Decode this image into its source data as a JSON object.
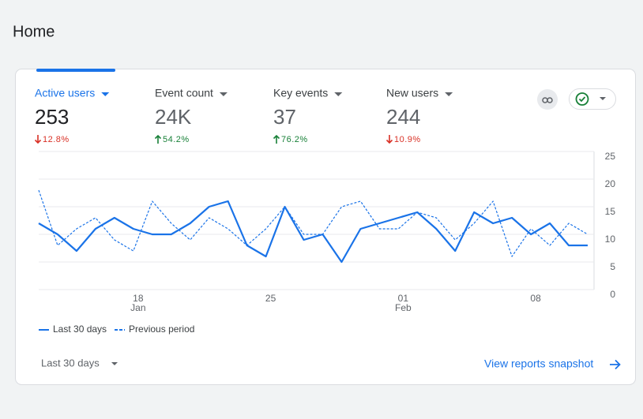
{
  "header": {
    "title": "Home"
  },
  "metrics": [
    {
      "label": "Active users",
      "value": "253",
      "change": "12.8%",
      "trend": "down",
      "selected": true
    },
    {
      "label": "Event count",
      "value": "24K",
      "change": "54.2%",
      "trend": "up",
      "selected": false
    },
    {
      "label": "Key events",
      "value": "37",
      "change": "76.2%",
      "trend": "up",
      "selected": false
    },
    {
      "label": "New users",
      "value": "244",
      "change": "10.9%",
      "trend": "down",
      "selected": false
    }
  ],
  "chart_data": {
    "type": "line",
    "categories": [
      null,
      null,
      null,
      null,
      null,
      "18",
      null,
      null,
      null,
      null,
      null,
      null,
      "25",
      null,
      null,
      null,
      null,
      null,
      null,
      "01",
      null,
      null,
      null,
      null,
      null,
      null,
      "08",
      null,
      null,
      null
    ],
    "month_labels": [
      null,
      null,
      null,
      null,
      null,
      "Jan",
      null,
      null,
      null,
      null,
      null,
      null,
      null,
      null,
      null,
      null,
      null,
      null,
      null,
      "Feb",
      null,
      null,
      null,
      null,
      null,
      null,
      null,
      null,
      null,
      null
    ],
    "series": [
      {
        "name": "Last 30 days",
        "color": "#1a73e8",
        "dashed": false,
        "values": [
          12,
          10,
          7,
          11,
          13,
          11,
          10,
          10,
          12,
          15,
          16,
          8,
          6,
          15,
          9,
          10,
          5,
          11,
          12,
          13,
          14,
          11,
          7,
          14,
          12,
          13,
          10,
          12,
          8,
          8
        ]
      },
      {
        "name": "Previous period",
        "color": "#1a73e8",
        "dashed": true,
        "values": [
          18,
          8,
          11,
          13,
          9,
          7,
          16,
          12,
          9,
          13,
          11,
          8,
          11,
          15,
          10,
          10,
          15,
          16,
          11,
          11,
          14,
          13,
          9,
          12,
          16,
          6,
          11,
          8,
          12,
          10
        ]
      }
    ],
    "ylim": [
      0,
      25
    ],
    "yticks": [
      0,
      5,
      10,
      15,
      20,
      25
    ],
    "grid": true
  },
  "footer": {
    "range": "Last 30 days",
    "link": "View reports snapshot"
  }
}
